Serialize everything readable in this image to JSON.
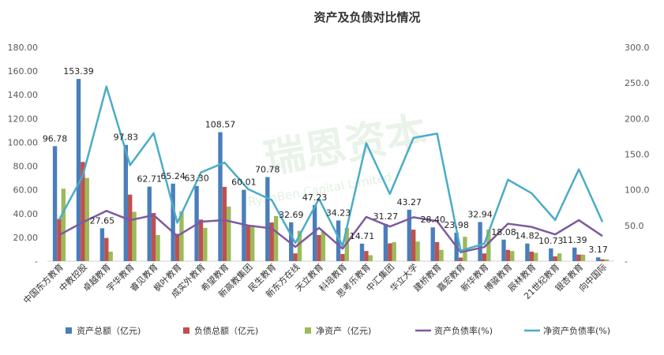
{
  "watermark": {
    "main": "瑞恩资本",
    "sub": "RyanBen Capital Limited"
  },
  "chart_data": {
    "type": "bar",
    "title": "资产及负债对比情况",
    "categories": [
      "中国东方教育",
      "中教控股",
      "卓越教育",
      "宇华教育",
      "睿见教育",
      "枫叶教育",
      "成实外教育",
      "希望教育",
      "新高教集团",
      "民生教育",
      "新东方在线",
      "天立教育",
      "科培教育",
      "思考乐教育",
      "中汇集团",
      "华立大学",
      "建桥教育",
      "嘉宏教育",
      "新华教育",
      "博骏教育",
      "辰林教育",
      "21世纪教育",
      "银杏教育",
      "向中国际"
    ],
    "series": [
      {
        "name": "资产总额（亿元)",
        "type": "bar",
        "axis": "left",
        "color": "#4a7ebb",
        "values": [
          96.78,
          153.39,
          27.65,
          97.83,
          62.71,
          65.24,
          63.3,
          108.57,
          60.01,
          70.78,
          32.69,
          47.23,
          34.23,
          14.71,
          31.27,
          43.27,
          28.4,
          23.98,
          32.94,
          18.08,
          14.82,
          10.73,
          11.39,
          3.17
        ],
        "labels": [
          "96.78",
          "153.39",
          "27.65",
          "97.83",
          "62.71",
          "65.24",
          "63.30",
          "108.57",
          "60.01",
          "70.78",
          "32.69",
          "47.23",
          "34.23",
          "14.71",
          "31.27",
          "43.27",
          "28.40",
          "23.98",
          "32.94",
          "18.08",
          "14.82",
          "10.73",
          "11.39",
          "3.17"
        ]
      },
      {
        "name": "负债总额（亿元)",
        "type": "bar",
        "axis": "left",
        "color": "#c0504d",
        "values": [
          35.5,
          83.5,
          19.5,
          56,
          40.5,
          23,
          35,
          62.5,
          30,
          32.5,
          6.5,
          22,
          6,
          8.5,
          15,
          26.5,
          16,
          3,
          6.5,
          9.5,
          8,
          4,
          5.5,
          1.5
        ]
      },
      {
        "name": "净资产（亿元)",
        "type": "bar",
        "axis": "left",
        "color": "#9bbb59",
        "values": [
          61,
          70,
          8,
          41.5,
          22,
          42,
          28,
          46,
          30,
          38,
          25.5,
          25,
          28,
          5,
          16,
          16.5,
          9.5,
          20.5,
          26.5,
          8.5,
          7,
          6.5,
          5.5,
          1.5
        ]
      },
      {
        "name": "资产负债率(%)",
        "type": "line",
        "axis": "right",
        "color": "#7d5a9e",
        "values": [
          36.6,
          54.5,
          70.5,
          57.5,
          64.5,
          35.2,
          55.3,
          57.6,
          50,
          46,
          20,
          46.6,
          17.5,
          62,
          48.5,
          61.6,
          56,
          12.5,
          19.7,
          52.5,
          48,
          37.5,
          57.5,
          35.2
        ]
      },
      {
        "name": "净资产负债率(%)",
        "type": "line",
        "axis": "right",
        "color": "#4bacc6",
        "values": [
          58.2,
          119.6,
          245,
          134.7,
          179.5,
          53.9,
          124.4,
          138.3,
          101,
          85.7,
          25.5,
          87.5,
          21.4,
          165.5,
          94.2,
          173,
          178.9,
          14.6,
          24.5,
          114.3,
          95.3,
          57.7,
          128.8,
          55
        ]
      }
    ],
    "y_left": {
      "min": 0,
      "max": 180,
      "ticks": [
        "-",
        "20.00",
        "40.00",
        "60.00",
        "80.00",
        "100.00",
        "120.00",
        "140.00",
        "160.00",
        "180.00"
      ]
    },
    "y_right": {
      "min": 0,
      "max": 300,
      "ticks": [
        "-",
        "50.0",
        "100.0",
        "150.0",
        "200.0",
        "250.0",
        "300.0"
      ]
    },
    "grid": false,
    "legend_position": "bottom"
  }
}
